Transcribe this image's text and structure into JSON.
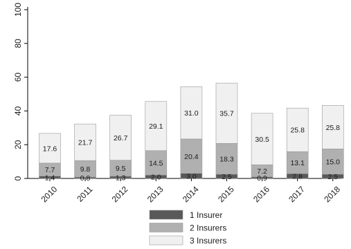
{
  "chart_data": {
    "type": "bar",
    "stacked": true,
    "categories": [
      "2010",
      "2011",
      "2012",
      "2013",
      "2014",
      "2015",
      "2016",
      "2017",
      "2018"
    ],
    "series": [
      {
        "name": "1 Insurer",
        "color": "#595959",
        "values": [
          1.4,
          0.8,
          1.3,
          2.0,
          3.0,
          2.5,
          0.9,
          2.8,
          2.5
        ]
      },
      {
        "name": "2 Insurers",
        "color": "#b0b0b0",
        "values": [
          7.7,
          9.8,
          9.5,
          14.5,
          20.4,
          18.3,
          7.2,
          13.1,
          15.0
        ]
      },
      {
        "name": "3 Insurers",
        "color": "#f0f0f0",
        "values": [
          17.6,
          21.7,
          26.7,
          29.1,
          31.0,
          35.7,
          30.5,
          25.8,
          25.8
        ]
      }
    ],
    "ylim": [
      0,
      100
    ],
    "yticks": [
      0,
      20,
      40,
      60,
      80,
      100
    ],
    "legend_position": "bottom",
    "grid": false
  }
}
